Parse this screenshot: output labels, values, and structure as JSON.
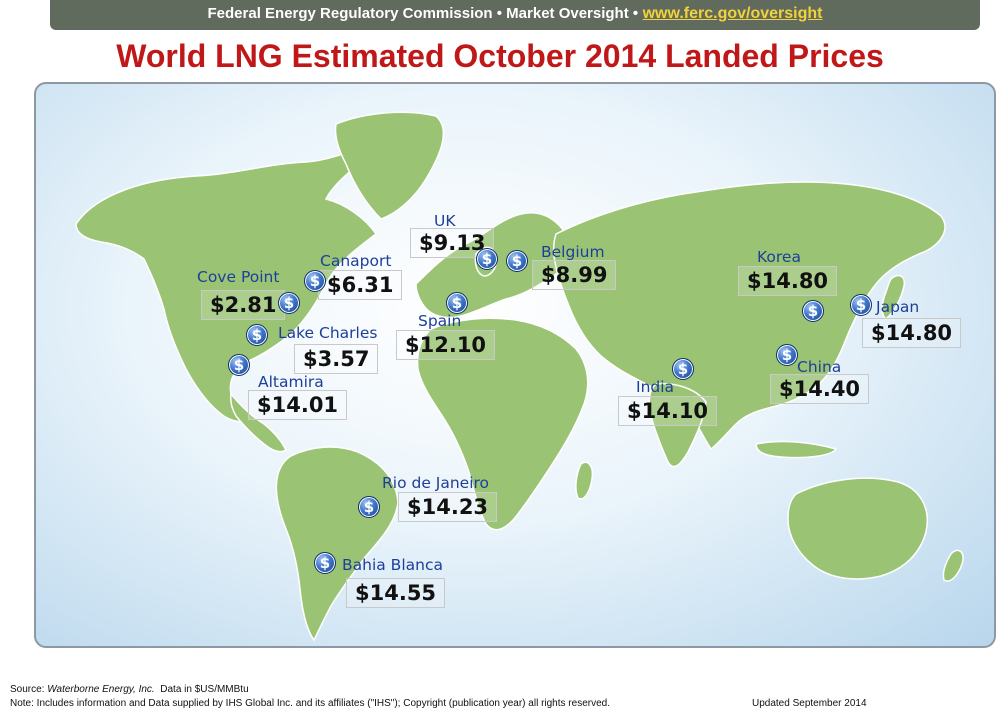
{
  "header": {
    "text": "Federal Energy Regulatory Commission • Market Oversight •",
    "link": "www.ferc.gov/oversight"
  },
  "title": "World LNG Estimated October 2014 Landed Prices",
  "colors": {
    "title": "#c01818",
    "label": "#1d3f9a",
    "land": "#9ac474",
    "header_bg": "#606a5d",
    "link": "#f2d23a"
  },
  "icon": "dollar-coin-icon",
  "locations": [
    {
      "id": "cove-point",
      "name": "Cove Point",
      "price": "$2.81"
    },
    {
      "id": "canaport",
      "name": "Canaport",
      "price": "$6.31"
    },
    {
      "id": "lake-charles",
      "name": "Lake Charles",
      "price": "$3.57"
    },
    {
      "id": "altamira",
      "name": "Altamira",
      "price": "$14.01"
    },
    {
      "id": "uk",
      "name": "UK",
      "price": "$9.13"
    },
    {
      "id": "belgium",
      "name": "Belgium",
      "price": "$8.99"
    },
    {
      "id": "spain",
      "name": "Spain",
      "price": "$12.10"
    },
    {
      "id": "india",
      "name": "India",
      "price": "$14.10"
    },
    {
      "id": "korea",
      "name": "Korea",
      "price": "$14.80"
    },
    {
      "id": "japan",
      "name": "Japan",
      "price": "$14.80"
    },
    {
      "id": "china",
      "name": "China",
      "price": "$14.40"
    },
    {
      "id": "rio-de-janeiro",
      "name": "Rio de Janeiro",
      "price": "$14.23"
    },
    {
      "id": "bahia-blanca",
      "name": "Bahia Blanca",
      "price": "$14.55"
    }
  ],
  "footer": {
    "source_prefix": "Source: ",
    "source_name": "Waterborne Energy, Inc.",
    "source_suffix": "  Data in $US/MMBtu",
    "note": "Note: Includes information and Data supplied by IHS Global Inc. and its affiliates (\"IHS\"); Copyright (publication year) all rights reserved.",
    "updated": "Updated  September 2014"
  }
}
